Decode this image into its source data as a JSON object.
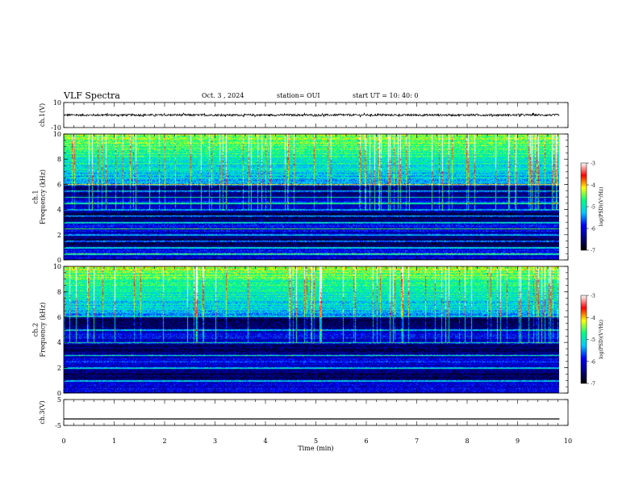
{
  "header": {
    "title": "VLF Spectra",
    "date": "Oct. 3 , 2024",
    "station": "station= OUI",
    "start": "start UT = 10: 40: 0"
  },
  "chart_data": [
    {
      "type": "line",
      "name": "ch1-waveform",
      "ylabel": "ch.1(V)",
      "ylim": [
        -10,
        10
      ],
      "ytick_labels": [
        "10",
        "-10"
      ],
      "xlim": [
        0,
        10
      ],
      "data_extent_min": [
        0,
        9.83
      ],
      "amplitude_approx": 0.8,
      "baseline": 0
    },
    {
      "type": "heatmap",
      "name": "ch1-spectrogram",
      "ylabel": "ch.1\nFrequency (kHz)",
      "ylabel_lines": [
        "ch.1",
        "Frequency (kHz)"
      ],
      "ylim": [
        0,
        10
      ],
      "yticks": [
        0,
        2,
        4,
        6,
        8,
        10
      ],
      "xlim": [
        0,
        10
      ],
      "data_extent_min": [
        0,
        9.83
      ],
      "colorbar": {
        "label": "log(PSD)(V²/Hz)",
        "range": [
          -7,
          -3
        ],
        "ticks": [
          "-3",
          "-4",
          "-5",
          "-6",
          "-7"
        ]
      },
      "features": {
        "broadband_noise_above_khz": 6,
        "persistent_line_khz": [
          0.5,
          1.0,
          1.5,
          2.0,
          2.5,
          3.0,
          3.5,
          4.0,
          4.5,
          5.0,
          5.5,
          6.0
        ]
      }
    },
    {
      "type": "heatmap",
      "name": "ch2-spectrogram",
      "ylabel": "ch.2\nFrequency (kHz)",
      "ylabel_lines": [
        "ch.2",
        "Frequency (kHz)"
      ],
      "ylim": [
        0,
        10
      ],
      "yticks": [
        0,
        2,
        4,
        6,
        8,
        10
      ],
      "xlim": [
        0,
        10
      ],
      "data_extent_min": [
        0,
        9.83
      ],
      "colorbar": {
        "label": "log(PSD)(V²/Hz)",
        "range": [
          -7,
          -3
        ],
        "ticks": [
          "-3",
          "-4",
          "-5",
          "-6",
          "-7"
        ]
      },
      "features": {
        "broadband_noise_above_khz": 6,
        "persistent_line_khz": [
          1.0,
          2.0,
          3.0,
          4.0,
          5.0
        ]
      }
    },
    {
      "type": "line",
      "name": "ch3-waveform",
      "ylabel": "ch.3(V)",
      "ylim": [
        -5,
        5
      ],
      "ytick_labels": [
        "5",
        "-5"
      ],
      "xlim": [
        0,
        10
      ],
      "data_extent_min": [
        0,
        9.83
      ],
      "constant_value": -2.5
    }
  ],
  "x_axis": {
    "label": "Time (min)",
    "ticks": [
      "0",
      "1",
      "2",
      "3",
      "4",
      "5",
      "6",
      "7",
      "8",
      "9",
      "10"
    ]
  },
  "colors": {
    "axes": "#000000",
    "trace": "#000000",
    "colormap": [
      "#000000",
      "#000080",
      "#0000ff",
      "#00c8ff",
      "#00ff7f",
      "#ffff00",
      "#ff0000",
      "#ffffff"
    ]
  }
}
